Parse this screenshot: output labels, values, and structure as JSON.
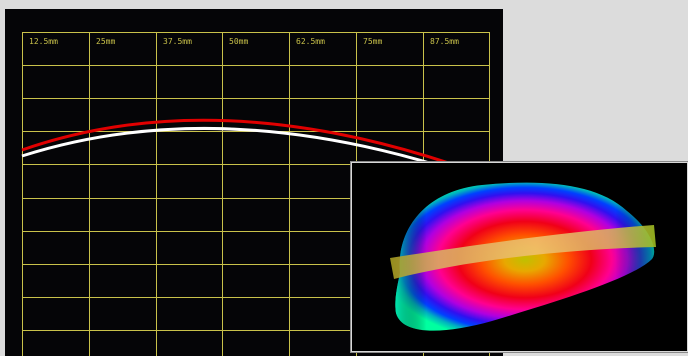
{
  "grid": {
    "scale_labels": [
      "12.5mm",
      "25mm",
      "37.5mm",
      "50mm",
      "62.5mm",
      "75mm",
      "87.5mm"
    ],
    "grid_color": "#c9c24a",
    "background_color": "#050507"
  },
  "profile": {
    "outer_curve_color": "#e00000",
    "inner_curve_color": "#ffffff"
  },
  "preview": {
    "background_color": "#000000",
    "band_color": "#d8b060"
  }
}
